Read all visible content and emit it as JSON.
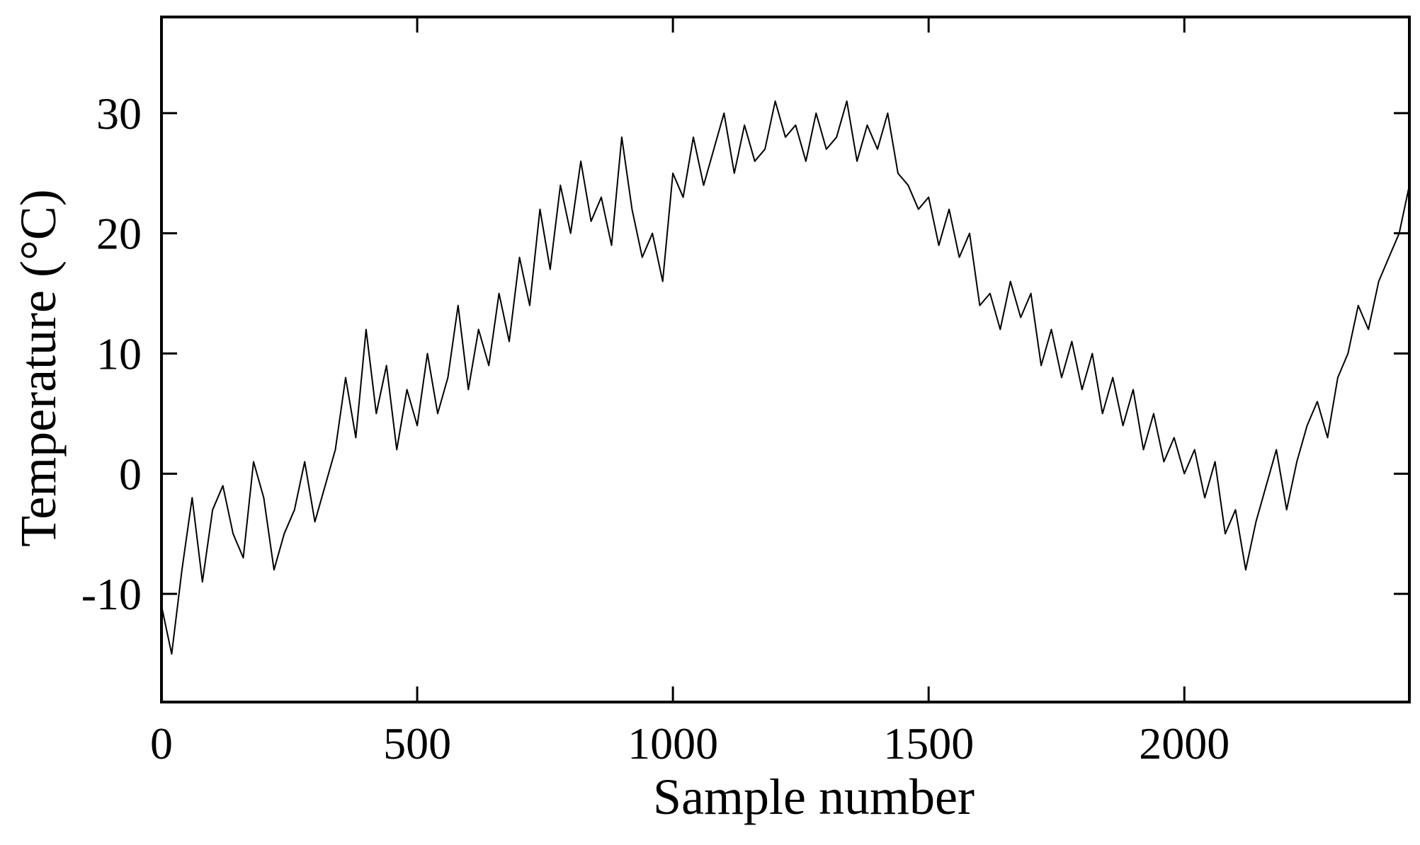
{
  "chart_data": {
    "type": "line",
    "title": "",
    "xlabel": "Sample number",
    "ylabel": "Temperature (°C)",
    "xlim": [
      0,
      2440
    ],
    "ylim": [
      -19,
      38
    ],
    "xticks": [
      0,
      500,
      1000,
      1500,
      2000
    ],
    "xtick_labels": [
      "0",
      "500",
      "1000",
      "1500",
      "2000"
    ],
    "yticks": [
      -10,
      0,
      10,
      20,
      30
    ],
    "ytick_labels": [
      "-10",
      "0",
      "10",
      "20",
      "30"
    ],
    "grid": false,
    "legend": "none",
    "line_color": "#000000",
    "series": [
      {
        "x": [
          0,
          20,
          40,
          60,
          80,
          100,
          120,
          140,
          160,
          180,
          200,
          220,
          240,
          260,
          280,
          300,
          320,
          340,
          360,
          380,
          400,
          420,
          440,
          460,
          480,
          500,
          520,
          540,
          560,
          580,
          600,
          620,
          640,
          660,
          680,
          700,
          720,
          740,
          760,
          780,
          800,
          820,
          840,
          860,
          880,
          900,
          920,
          940,
          960,
          980,
          1000,
          1020,
          1040,
          1060,
          1080,
          1100,
          1120,
          1140,
          1160,
          1180,
          1200,
          1220,
          1240,
          1260,
          1280,
          1300,
          1320,
          1340,
          1360,
          1380,
          1400,
          1420,
          1440,
          1460,
          1480,
          1500,
          1520,
          1540,
          1560,
          1580,
          1600,
          1620,
          1640,
          1660,
          1680,
          1700,
          1720,
          1740,
          1760,
          1780,
          1800,
          1820,
          1840,
          1860,
          1880,
          1900,
          1920,
          1940,
          1960,
          1980,
          2000,
          2020,
          2040,
          2060,
          2080,
          2100,
          2120,
          2140,
          2160,
          2180,
          2200,
          2220,
          2240,
          2260,
          2280,
          2300,
          2320,
          2340,
          2360,
          2380,
          2400,
          2420,
          2440
        ],
        "y": [
          -11,
          -15,
          -8,
          -2,
          -9,
          -3,
          -1,
          -5,
          -7,
          1,
          -2,
          -8,
          -5,
          -3,
          1,
          -4,
          -1,
          2,
          8,
          3,
          12,
          5,
          9,
          2,
          7,
          4,
          10,
          5,
          8,
          14,
          7,
          12,
          9,
          15,
          11,
          18,
          14,
          22,
          17,
          24,
          20,
          26,
          21,
          23,
          19,
          28,
          22,
          18,
          20,
          16,
          25,
          23,
          28,
          24,
          27,
          30,
          25,
          29,
          26,
          27,
          31,
          28,
          29,
          26,
          30,
          27,
          28,
          31,
          26,
          29,
          27,
          30,
          25,
          24,
          22,
          23,
          19,
          22,
          18,
          20,
          14,
          15,
          12,
          16,
          13,
          15,
          9,
          12,
          8,
          11,
          7,
          10,
          5,
          8,
          4,
          7,
          2,
          5,
          1,
          3,
          0,
          2,
          -2,
          1,
          -5,
          -3,
          -8,
          -4,
          -1,
          2,
          -3,
          1,
          4,
          6,
          3,
          8,
          10,
          14,
          12,
          16,
          18,
          20,
          24
        ]
      }
    ]
  }
}
